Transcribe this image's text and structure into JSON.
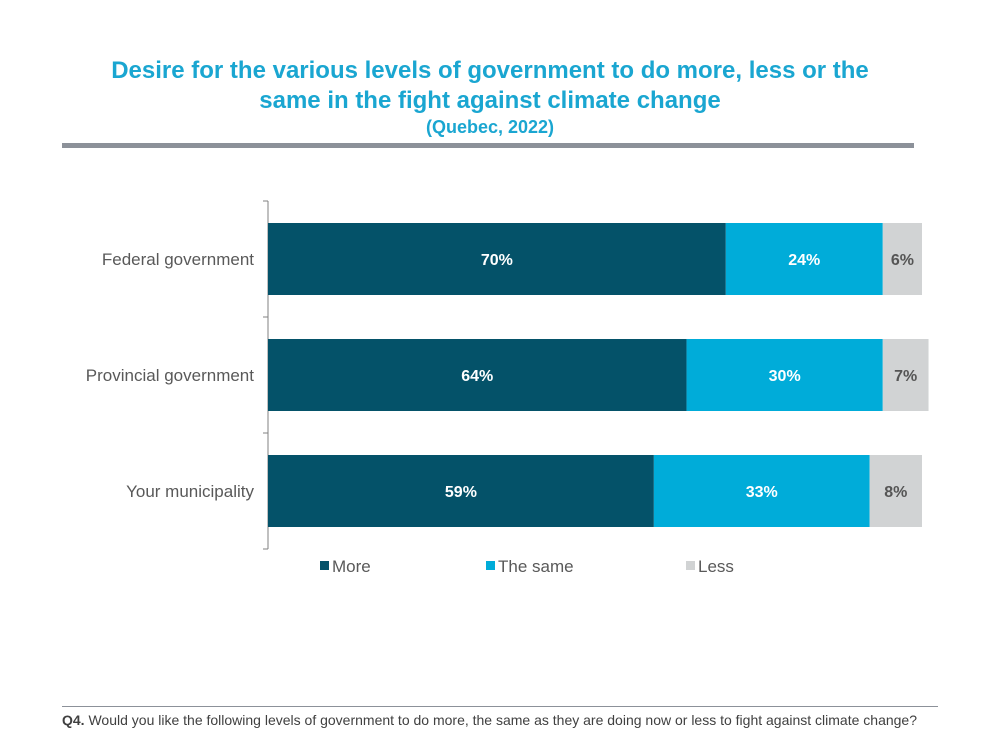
{
  "title_lines": [
    "Desire for the various levels of government to do more, less or the",
    "same in the fight against  climate change"
  ],
  "subtitle": "(Quebec, 2022)",
  "footnote": {
    "label": "Q4.",
    "text": " Would you like the following levels of government to do more, the same as they are doing now or less to fight against climate change?"
  },
  "colors": {
    "accent": "#1aa6d1",
    "more": "#045269",
    "same": "#00acd9",
    "less": "#d1d3d4"
  },
  "chart_data": {
    "type": "bar",
    "orientation": "horizontal",
    "stacked": true,
    "title": "Desire for the various levels of government to do more, less or the same in the fight against  climate change",
    "subtitle": "(Quebec, 2022)",
    "categories": [
      "Federal government",
      "Provincial government",
      "Your municipality"
    ],
    "series": [
      {
        "name": "More",
        "values": [
          70,
          64,
          59
        ],
        "labels": [
          "70%",
          "64%",
          "59%"
        ]
      },
      {
        "name": "The same",
        "values": [
          24,
          30,
          33
        ],
        "labels": [
          "24%",
          "30%",
          "33%"
        ]
      },
      {
        "name": "Less",
        "values": [
          6,
          7,
          8
        ],
        "labels": [
          "6%",
          "7%",
          "8%"
        ]
      }
    ],
    "xlim": [
      0,
      100
    ],
    "legend": {
      "position": "bottom",
      "entries": [
        "More",
        "The same",
        "Less"
      ]
    },
    "grid": false
  }
}
